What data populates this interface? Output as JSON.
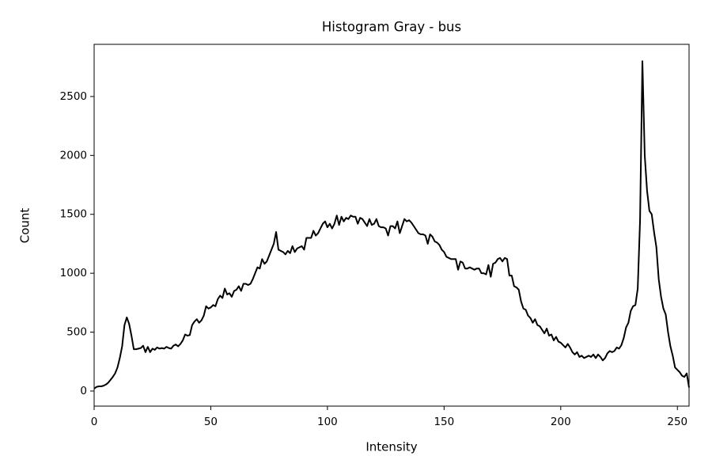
{
  "chart_data": {
    "type": "line",
    "title": "Histogram Gray - bus",
    "xlabel": "Intensity",
    "ylabel": "Count",
    "color": "#000000",
    "x": [
      0,
      1,
      2,
      3,
      4,
      5,
      6,
      7,
      8,
      9,
      10,
      11,
      12,
      13,
      14,
      15,
      16,
      17,
      18,
      19,
      20,
      21,
      22,
      23,
      24,
      25,
      26,
      27,
      28,
      29,
      30,
      31,
      32,
      33,
      34,
      35,
      36,
      37,
      38,
      39,
      40,
      41,
      42,
      43,
      44,
      45,
      46,
      47,
      48,
      49,
      50,
      51,
      52,
      53,
      54,
      55,
      56,
      57,
      58,
      59,
      60,
      61,
      62,
      63,
      64,
      65,
      66,
      67,
      68,
      69,
      70,
      71,
      72,
      73,
      74,
      75,
      76,
      77,
      78,
      79,
      80,
      81,
      82,
      83,
      84,
      85,
      86,
      87,
      88,
      89,
      90,
      91,
      92,
      93,
      94,
      95,
      96,
      97,
      98,
      99,
      100,
      101,
      102,
      103,
      104,
      105,
      106,
      107,
      108,
      109,
      110,
      111,
      112,
      113,
      114,
      115,
      116,
      117,
      118,
      119,
      120,
      121,
      122,
      123,
      124,
      125,
      126,
      127,
      128,
      129,
      130,
      131,
      132,
      133,
      134,
      135,
      136,
      137,
      138,
      139,
      140,
      141,
      142,
      143,
      144,
      145,
      146,
      147,
      148,
      149,
      150,
      151,
      152,
      153,
      154,
      155,
      156,
      157,
      158,
      159,
      160,
      161,
      162,
      163,
      164,
      165,
      166,
      167,
      168,
      169,
      170,
      171,
      172,
      173,
      174,
      175,
      176,
      177,
      178,
      179,
      180,
      181,
      182,
      183,
      184,
      185,
      186,
      187,
      188,
      189,
      190,
      191,
      192,
      193,
      194,
      195,
      196,
      197,
      198,
      199,
      200,
      201,
      202,
      203,
      204,
      205,
      206,
      207,
      208,
      209,
      210,
      211,
      212,
      213,
      214,
      215,
      216,
      217,
      218,
      219,
      220,
      221,
      222,
      223,
      224,
      225,
      226,
      227,
      228,
      229,
      230,
      231,
      232,
      233,
      234,
      235,
      236,
      237,
      238,
      239,
      240,
      241,
      242,
      243,
      244,
      245,
      246,
      247,
      248,
      249,
      250,
      251,
      252,
      253,
      254,
      255
    ],
    "values": [
      20,
      35,
      40,
      40,
      45,
      55,
      70,
      95,
      120,
      150,
      200,
      280,
      380,
      560,
      625,
      570,
      470,
      355,
      355,
      360,
      365,
      385,
      330,
      375,
      330,
      360,
      350,
      370,
      360,
      365,
      360,
      375,
      365,
      360,
      385,
      395,
      380,
      400,
      430,
      480,
      470,
      475,
      560,
      590,
      610,
      580,
      600,
      640,
      720,
      700,
      710,
      730,
      720,
      780,
      810,
      790,
      870,
      820,
      830,
      800,
      850,
      860,
      890,
      850,
      910,
      910,
      900,
      910,
      950,
      1000,
      1050,
      1040,
      1120,
      1080,
      1100,
      1150,
      1200,
      1250,
      1350,
      1200,
      1190,
      1180,
      1160,
      1190,
      1170,
      1230,
      1180,
      1210,
      1220,
      1230,
      1200,
      1300,
      1300,
      1300,
      1360,
      1320,
      1340,
      1380,
      1420,
      1440,
      1390,
      1420,
      1380,
      1420,
      1490,
      1410,
      1480,
      1440,
      1470,
      1460,
      1490,
      1480,
      1480,
      1420,
      1470,
      1460,
      1430,
      1400,
      1460,
      1410,
      1420,
      1460,
      1400,
      1390,
      1390,
      1380,
      1320,
      1400,
      1400,
      1380,
      1440,
      1340,
      1400,
      1460,
      1440,
      1450,
      1430,
      1400,
      1370,
      1340,
      1330,
      1330,
      1320,
      1250,
      1330,
      1310,
      1270,
      1260,
      1240,
      1200,
      1180,
      1140,
      1130,
      1120,
      1120,
      1120,
      1030,
      1100,
      1090,
      1040,
      1040,
      1050,
      1040,
      1030,
      1040,
      1040,
      1000,
      1000,
      990,
      1070,
      970,
      1080,
      1090,
      1120,
      1130,
      1100,
      1130,
      1120,
      980,
      980,
      890,
      880,
      860,
      760,
      700,
      690,
      640,
      620,
      580,
      610,
      560,
      550,
      520,
      490,
      530,
      470,
      480,
      430,
      460,
      420,
      410,
      390,
      370,
      400,
      370,
      330,
      310,
      330,
      290,
      300,
      280,
      290,
      300,
      290,
      310,
      280,
      310,
      290,
      260,
      280,
      320,
      340,
      330,
      340,
      370,
      360,
      390,
      450,
      540,
      580,
      680,
      720,
      730,
      870,
      1450,
      2800,
      2000,
      1700,
      1530,
      1500,
      1350,
      1220,
      950,
      800,
      700,
      650,
      500,
      380,
      300,
      200,
      180,
      160,
      130,
      120,
      150,
      30
    ],
    "xlim": [
      0,
      255
    ],
    "xticks": [
      0,
      50,
      100,
      150,
      200,
      250
    ],
    "ylim": [
      -128,
      2943
    ],
    "yticks": [
      0,
      500,
      1000,
      1500,
      2000,
      2500
    ]
  }
}
